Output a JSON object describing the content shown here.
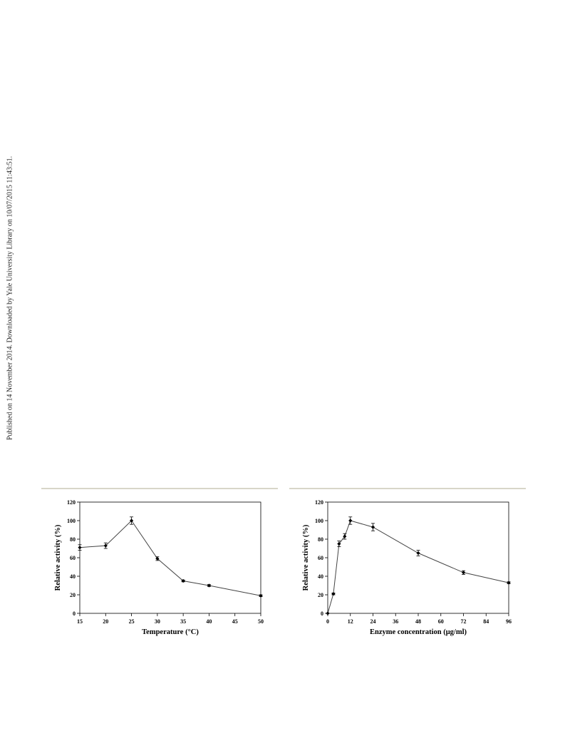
{
  "sidebar_text": "Published on 14 November 2014. Downloaded by Yale University Library on 10/07/2015 11:43:51.",
  "chart_data": [
    {
      "type": "line",
      "title": "",
      "xlabel": "Temperature (°C)",
      "ylabel": "Relative activity (%)",
      "xlim": [
        15,
        50
      ],
      "ylim": [
        0,
        120
      ],
      "xticks": [
        15,
        20,
        25,
        30,
        35,
        40,
        45,
        50
      ],
      "yticks": [
        0,
        20,
        40,
        60,
        80,
        100,
        120
      ],
      "grid": false,
      "legend": "none",
      "series": [
        {
          "x": [
            15,
            20,
            25,
            30,
            35,
            40,
            50
          ],
          "y": [
            71,
            73,
            100,
            59,
            35,
            30,
            19
          ],
          "error": [
            3,
            3,
            4,
            2,
            1,
            1,
            1
          ],
          "color": "#000000"
        }
      ]
    },
    {
      "type": "line",
      "title": "",
      "xlabel": "Enzyme concentration (μg/ml)",
      "ylabel": "Relative activity (%)",
      "xlim": [
        0,
        96
      ],
      "ylim": [
        0,
        120
      ],
      "xticks": [
        0,
        12,
        24,
        36,
        48,
        60,
        72,
        84,
        96
      ],
      "yticks": [
        0,
        20,
        40,
        60,
        80,
        100,
        120
      ],
      "grid": false,
      "legend": "none",
      "series": [
        {
          "x": [
            0,
            3,
            6,
            9,
            12,
            24,
            48,
            72,
            96
          ],
          "y": [
            0,
            21,
            75,
            83,
            100,
            93,
            65,
            44,
            33
          ],
          "error": [
            0,
            1,
            3,
            3,
            4,
            4,
            3,
            2,
            1
          ],
          "color": "#000000"
        }
      ]
    }
  ]
}
